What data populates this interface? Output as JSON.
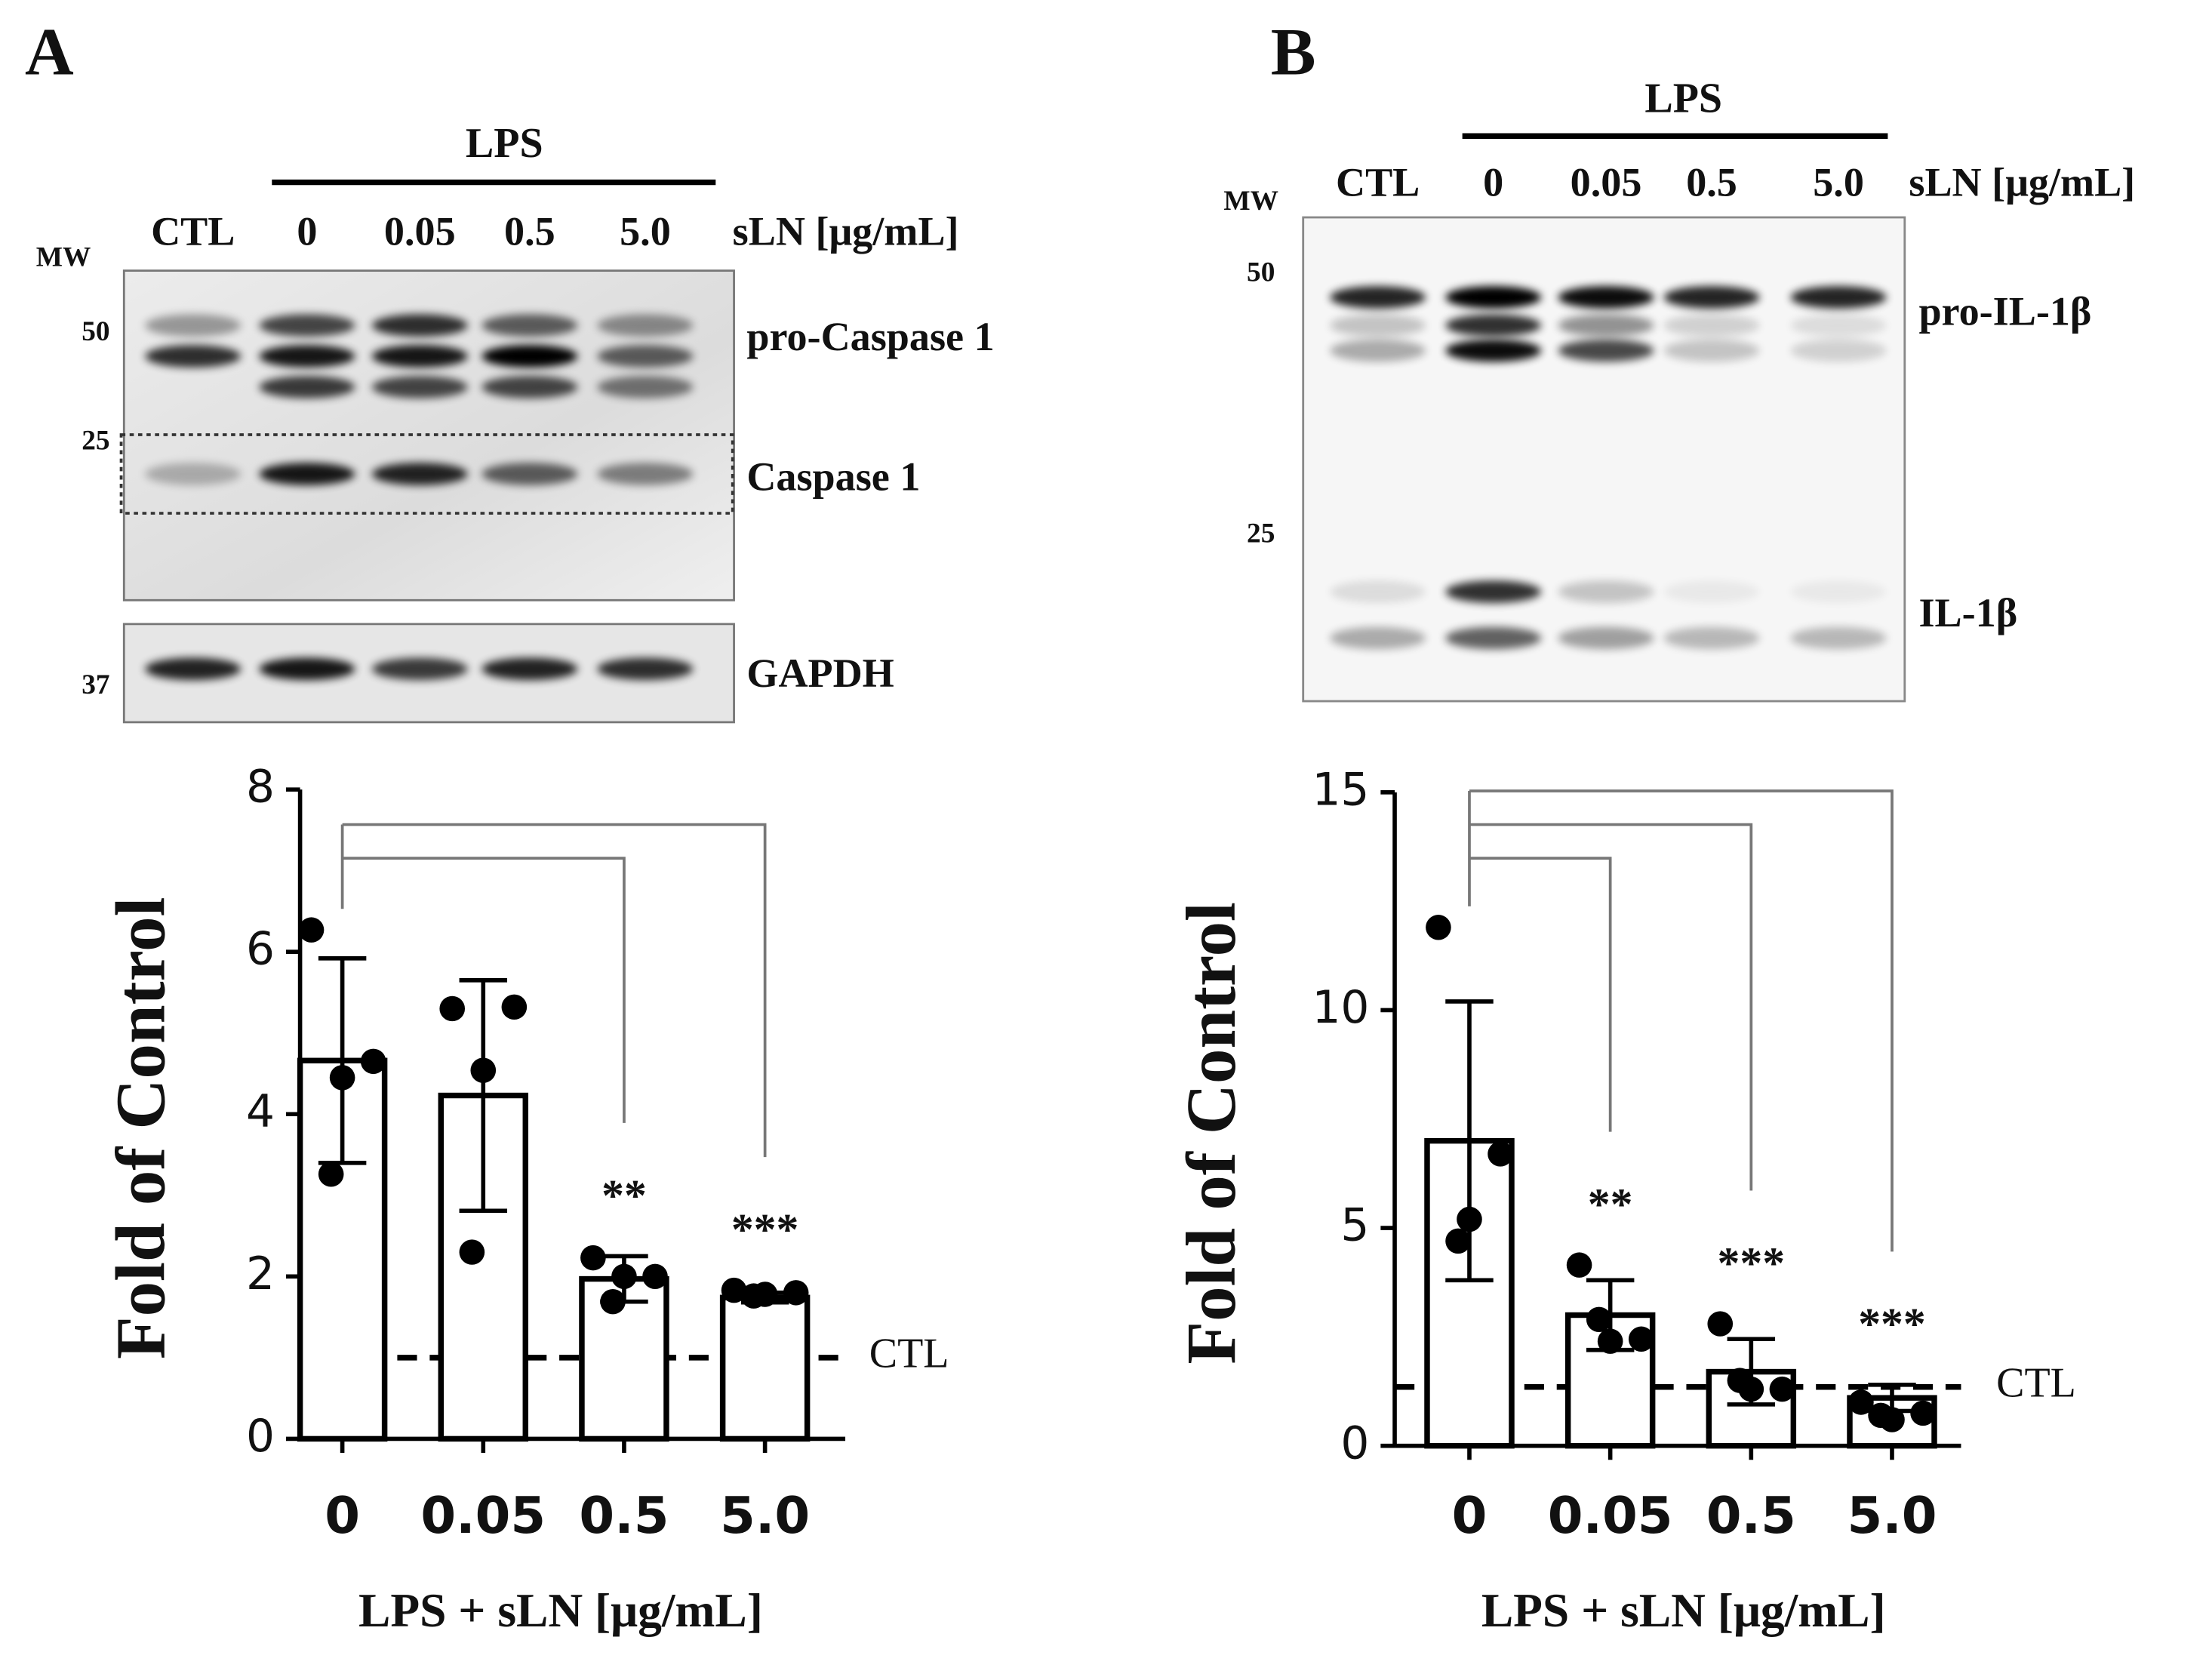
{
  "chart_data": [
    {
      "type": "bar",
      "panel": "A",
      "ylabel": "Fold of Control",
      "xlabel": "LPS + sLN [μg/mL]",
      "categories": [
        "0",
        "0.05",
        "0.5",
        "5.0"
      ],
      "values": [
        4.66,
        4.23,
        1.97,
        1.74
      ],
      "errors": [
        1.26,
        1.42,
        0.28,
        0.06
      ],
      "points": [
        [
          6.27,
          4.65,
          4.45,
          3.26
        ],
        [
          5.3,
          5.32,
          4.54,
          2.3
        ],
        [
          2.23,
          2.0,
          2.0,
          1.69
        ],
        [
          1.83,
          1.8,
          1.78,
          1.76
        ]
      ],
      "significance": [
        null,
        null,
        "**",
        "***"
      ],
      "reference_line": {
        "value": 1,
        "label": "CTL"
      },
      "ylim": [
        0,
        8
      ],
      "yticks": [
        0,
        2,
        4,
        6,
        8
      ]
    },
    {
      "type": "bar",
      "panel": "B",
      "ylabel": "Fold of Control",
      "xlabel": "LPS + sLN [μg/mL]",
      "categories": [
        "0",
        "0.05",
        "0.5",
        "5.0"
      ],
      "values": [
        7.0,
        3.0,
        1.7,
        1.1
      ],
      "errors": [
        3.2,
        0.8,
        0.75,
        0.3
      ],
      "points": [
        [
          11.9,
          6.7,
          5.2,
          4.7
        ],
        [
          4.15,
          2.45,
          2.4,
          2.9
        ],
        [
          2.8,
          1.3,
          1.3,
          1.5
        ],
        [
          1.0,
          0.75,
          0.6,
          0.7
        ]
      ],
      "significance": [
        null,
        "**",
        "***",
        "***"
      ],
      "reference_line": {
        "value": 1.35,
        "label": "CTL"
      },
      "ylim": [
        0,
        15
      ],
      "yticks": [
        0,
        5,
        10,
        15
      ]
    }
  ],
  "blots": [
    {
      "lps": "LPS",
      "mw_label": "MW",
      "lanes": [
        "CTL",
        "0",
        "0.05",
        "0.5",
        "5.0"
      ],
      "unit": "sLN [μg/mL]",
      "mw_markers": [
        50,
        25,
        37
      ],
      "bands": [
        "pro-Caspase 1",
        "Caspase 1",
        "GAPDH"
      ]
    },
    {
      "lps": "LPS",
      "mw_label": "MW",
      "lanes": [
        "CTL",
        "0",
        "0.05",
        "0.5",
        "5.0"
      ],
      "unit": "sLN [μg/mL]",
      "mw_markers": [
        50,
        25
      ],
      "bands": [
        "pro-IL-1β",
        "IL-1β"
      ]
    }
  ]
}
